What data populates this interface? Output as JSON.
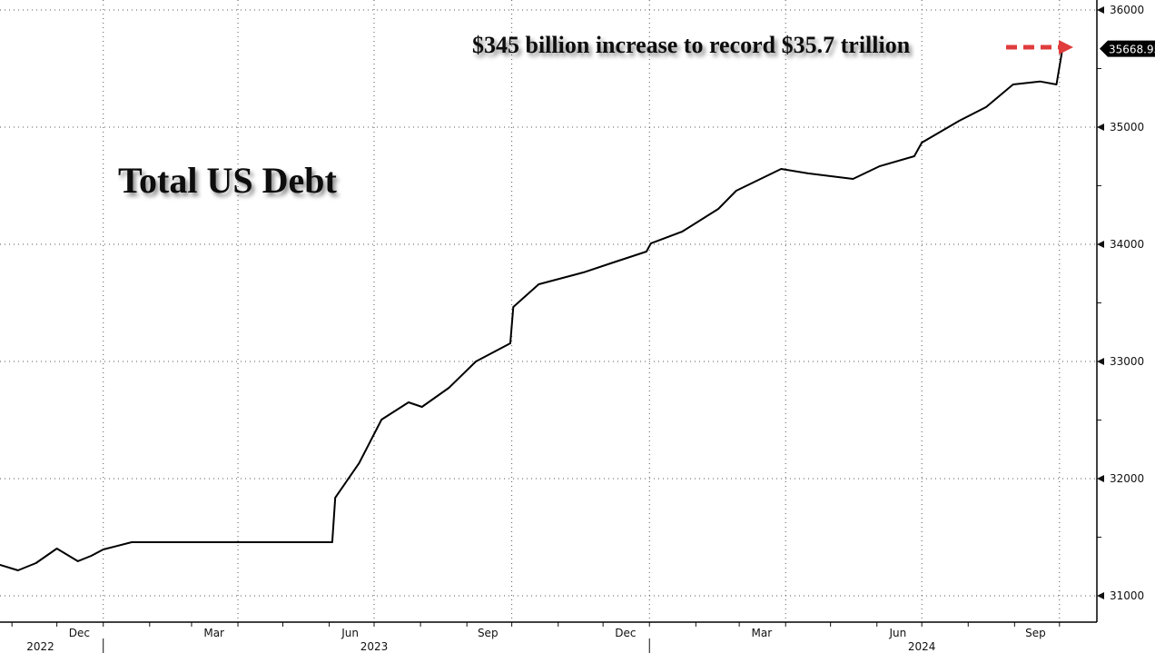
{
  "chart_data": {
    "type": "line",
    "title": "Total US Debt",
    "annotation": "$345 billion increase to record $35.7 trillion",
    "last_value_label": "35668.95",
    "ylim": [
      30775,
      36085
    ],
    "xlim": [
      "2022-10-24",
      "2024-10-26"
    ],
    "y_ticks": [
      "31000",
      "32000",
      "33000",
      "34000",
      "35000",
      "36000"
    ],
    "x_month_labels": [
      {
        "label": "Dec",
        "date": "2022-12-16"
      },
      {
        "label": "Mar",
        "date": "2023-03-16"
      },
      {
        "label": "Jun",
        "date": "2023-06-15"
      },
      {
        "label": "Sep",
        "date": "2023-09-15"
      },
      {
        "label": "Dec",
        "date": "2023-12-16"
      },
      {
        "label": "Mar",
        "date": "2024-03-16"
      },
      {
        "label": "Jun",
        "date": "2024-06-15"
      },
      {
        "label": "Sep",
        "date": "2024-09-15"
      }
    ],
    "x_year_labels": [
      {
        "label": "2022",
        "date": "2022-11-20"
      },
      {
        "label": "2023",
        "date": "2023-07-01"
      },
      {
        "label": "2024",
        "date": "2024-07-01"
      }
    ],
    "grid": true,
    "y_axis_side": "right",
    "line_color": "#000000",
    "annotation_arrow_color": "#e03c3c",
    "series": [
      {
        "x": [
          "2022-10-24",
          "2022-11-05",
          "2022-11-17",
          "2022-12-01",
          "2022-12-15",
          "2022-12-24",
          "2023-01-01",
          "2023-01-20",
          "2023-06-03",
          "2023-06-05",
          "2023-06-21",
          "2023-07-06",
          "2023-07-24",
          "2023-08-02",
          "2023-08-20",
          "2023-09-07",
          "2023-09-30",
          "2023-10-02",
          "2023-10-19",
          "2023-11-18",
          "2023-12-06",
          "2023-12-30",
          "2024-01-02",
          "2024-01-23",
          "2024-02-16",
          "2024-02-28",
          "2024-03-29",
          "2024-04-16",
          "2024-05-16",
          "2024-06-03",
          "2024-06-26",
          "2024-07-01",
          "2024-07-26",
          "2024-08-13",
          "2024-08-31",
          "2024-09-18",
          "2024-09-29",
          "2024-10-03"
        ],
        "y": [
          31264,
          31217,
          31279,
          31403,
          31295,
          31341,
          31395,
          31457,
          31457,
          31837,
          32132,
          32504,
          32651,
          32612,
          32775,
          33000,
          33155,
          33465,
          33659,
          33760,
          33837,
          33938,
          34008,
          34109,
          34302,
          34457,
          34643,
          34605,
          34558,
          34667,
          34752,
          34868,
          35054,
          35171,
          35364,
          35390,
          35364,
          35669
        ]
      }
    ]
  }
}
